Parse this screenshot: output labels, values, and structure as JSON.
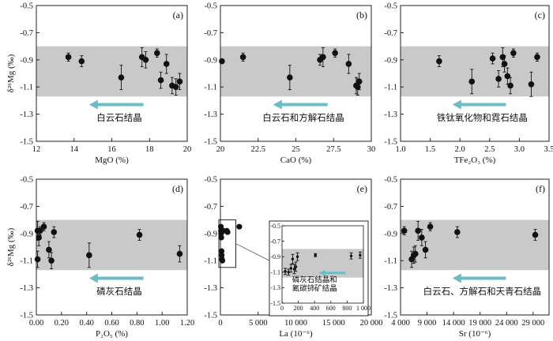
{
  "colors": {
    "band": "#c9c9c9",
    "arrow": "#6bbcc4",
    "point": "#111111",
    "frame": "#222222"
  },
  "ylabel": "δ²⁶Mg (‰)",
  "chart_data": [
    {
      "id": "a",
      "type": "scatter",
      "panel_label": "(a)",
      "xlabel": "MgO (%)",
      "xlim": [
        12,
        20
      ],
      "xticks": [
        12,
        14,
        16,
        18,
        20
      ],
      "ylim": [
        -1.5,
        -0.5
      ],
      "yticks": [
        -0.5,
        -0.7,
        -0.9,
        -1.1,
        -1.3,
        -1.5
      ],
      "band": [
        -1.17,
        -0.8
      ],
      "annotation": "白云石结晶",
      "arrow_direction": "left",
      "points": [
        {
          "x": 13.7,
          "y": -0.88,
          "err": 0.03
        },
        {
          "x": 14.4,
          "y": -0.91,
          "err": 0.04
        },
        {
          "x": 16.5,
          "y": -1.03,
          "err": 0.09
        },
        {
          "x": 17.6,
          "y": -0.88,
          "err": 0.07
        },
        {
          "x": 17.8,
          "y": -0.9,
          "err": 0.06
        },
        {
          "x": 18.4,
          "y": -0.85,
          "err": 0.03
        },
        {
          "x": 18.6,
          "y": -1.05,
          "err": 0.06
        },
        {
          "x": 18.9,
          "y": -0.93,
          "err": 0.07
        },
        {
          "x": 19.2,
          "y": -1.09,
          "err": 0.06
        },
        {
          "x": 19.4,
          "y": -1.1,
          "err": 0.06
        },
        {
          "x": 19.6,
          "y": -1.06,
          "err": 0.06
        }
      ]
    },
    {
      "id": "b",
      "type": "scatter",
      "panel_label": "(b)",
      "xlabel": "CaO (%)",
      "xlim": [
        20,
        30
      ],
      "xticks": [
        20,
        22.5,
        25,
        27.5,
        30
      ],
      "xtick_labels": [
        "20",
        "22.5",
        "25",
        "27.5",
        "30"
      ],
      "ylim": [
        -1.5,
        -0.5
      ],
      "yticks": [
        -0.5,
        -0.7,
        -0.9,
        -1.1,
        -1.3,
        -1.5
      ],
      "band": [
        -1.17,
        -0.8
      ],
      "annotation": "白云石和方解石结晶",
      "arrow_direction": "left",
      "points": [
        {
          "x": 20.1,
          "y": -0.91,
          "err": 0
        },
        {
          "x": 21.5,
          "y": -0.88,
          "err": 0.03
        },
        {
          "x": 24.6,
          "y": -1.03,
          "err": 0.09
        },
        {
          "x": 26.6,
          "y": -0.9,
          "err": 0.04
        },
        {
          "x": 26.8,
          "y": -0.88,
          "err": 0.07
        },
        {
          "x": 27.6,
          "y": -0.85,
          "err": 0.03
        },
        {
          "x": 28.5,
          "y": -0.93,
          "err": 0.07
        },
        {
          "x": 29.0,
          "y": -1.09,
          "err": 0.06
        },
        {
          "x": 29.2,
          "y": -1.06,
          "err": 0.06
        },
        {
          "x": 29.1,
          "y": -1.1,
          "err": 0.06
        }
      ]
    },
    {
      "id": "c",
      "type": "scatter",
      "panel_label": "(c)",
      "xlabel": "TFe₂O₃ (%)",
      "xlim": [
        1.0,
        3.5
      ],
      "xticks": [
        1.0,
        1.5,
        2.0,
        2.5,
        3.0,
        3.5
      ],
      "xtick_labels": [
        "1.0",
        "1.5",
        "2.0",
        "2.5",
        "3.0",
        "3.5"
      ],
      "ylim": [
        -1.5,
        -0.5
      ],
      "yticks": [
        -0.5,
        -0.7,
        -0.9,
        -1.1,
        -1.3,
        -1.5
      ],
      "band": [
        -1.17,
        -0.8
      ],
      "annotation": "铁钛氧化物和霓石结晶",
      "arrow_direction": "left",
      "points": [
        {
          "x": 1.65,
          "y": -0.91,
          "err": 0.04
        },
        {
          "x": 2.2,
          "y": -1.06,
          "err": 0.09
        },
        {
          "x": 2.55,
          "y": -0.89,
          "err": 0.04
        },
        {
          "x": 2.65,
          "y": -1.04,
          "err": 0.06
        },
        {
          "x": 2.72,
          "y": -0.88,
          "err": 0.07
        },
        {
          "x": 2.75,
          "y": -0.93,
          "err": 0.06
        },
        {
          "x": 2.8,
          "y": -1.02,
          "err": 0.06
        },
        {
          "x": 2.85,
          "y": -1.09,
          "err": 0.06
        },
        {
          "x": 2.9,
          "y": -0.85,
          "err": 0.03
        },
        {
          "x": 3.2,
          "y": -1.08,
          "err": 0.09
        },
        {
          "x": 3.3,
          "y": -0.88,
          "err": 0.03
        }
      ]
    },
    {
      "id": "d",
      "type": "scatter",
      "panel_label": "(d)",
      "xlabel": "P₂O₅ (%)",
      "xlim": [
        0,
        1.2
      ],
      "xticks": [
        0,
        0.2,
        0.4,
        0.6,
        0.8,
        1.0,
        1.2
      ],
      "xtick_labels": [
        "0.00",
        "0.20",
        "0.40",
        "0.60",
        "0.80",
        "1.00",
        "1.20"
      ],
      "ylim": [
        -1.5,
        -0.5
      ],
      "yticks": [
        -0.5,
        -0.7,
        -0.9,
        -1.1,
        -1.3,
        -1.5
      ],
      "band": [
        -1.17,
        -0.8
      ],
      "annotation": "磷灰石结晶",
      "arrow_direction": "left",
      "points": [
        {
          "x": 0.01,
          "y": -0.88,
          "err": 0.07
        },
        {
          "x": 0.01,
          "y": -1.09,
          "err": 0.06
        },
        {
          "x": 0.02,
          "y": -0.93,
          "err": 0.06
        },
        {
          "x": 0.03,
          "y": -0.88,
          "err": 0.03
        },
        {
          "x": 0.06,
          "y": -0.85,
          "err": 0.03
        },
        {
          "x": 0.1,
          "y": -1.02,
          "err": 0.06
        },
        {
          "x": 0.12,
          "y": -1.1,
          "err": 0.06
        },
        {
          "x": 0.14,
          "y": -0.89,
          "err": 0.04
        },
        {
          "x": 0.42,
          "y": -1.06,
          "err": 0.09
        },
        {
          "x": 0.82,
          "y": -0.91,
          "err": 0.04
        },
        {
          "x": 1.14,
          "y": -1.05,
          "err": 0.06
        }
      ]
    },
    {
      "id": "e",
      "type": "scatter",
      "panel_label": "(e)",
      "xlabel": "La (10⁻⁶)",
      "xlim": [
        0,
        20000
      ],
      "xticks": [
        0,
        5000,
        10000,
        15000,
        20000
      ],
      "xtick_labels": [
        "0",
        "5 000",
        "10 000",
        "15 000",
        "20 000"
      ],
      "ylim": [
        -1.5,
        -0.5
      ],
      "yticks": [
        -0.5,
        -0.7,
        -0.9,
        -1.1,
        -1.3,
        -1.5
      ],
      "band": null,
      "points": [
        {
          "x": 60,
          "y": -0.85,
          "err": 0
        },
        {
          "x": 80,
          "y": -0.88,
          "err": 0
        },
        {
          "x": 100,
          "y": -0.9,
          "err": 0
        },
        {
          "x": 120,
          "y": -0.93,
          "err": 0
        },
        {
          "x": 150,
          "y": -1.03,
          "err": 0
        },
        {
          "x": 170,
          "y": -1.06,
          "err": 0
        },
        {
          "x": 200,
          "y": -1.09,
          "err": 0
        },
        {
          "x": 260,
          "y": -1.1,
          "err": 0
        },
        {
          "x": 400,
          "y": -0.88,
          "err": 0
        },
        {
          "x": 850,
          "y": -0.88,
          "err": 0
        },
        {
          "x": 950,
          "y": -0.89,
          "err": 0
        },
        {
          "x": 2500,
          "y": -0.85,
          "err": 0
        },
        {
          "x": 18300,
          "y": -0.91,
          "err": 0.04
        }
      ],
      "inset": {
        "xlim": [
          0,
          1000
        ],
        "xticks": [
          0,
          200,
          400,
          600,
          800,
          1000
        ],
        "xtick_labels": [
          "0",
          "200",
          "400",
          "600",
          "800",
          "1 000"
        ],
        "ylim": [
          -1.5,
          -0.5
        ],
        "yticks": [
          -0.5,
          -0.7,
          -0.9,
          -1.1,
          -1.3,
          -1.5
        ],
        "band": [
          -1.17,
          -0.8
        ],
        "annotation_line1": "磷灰石结晶和",
        "annotation_line2": "氟碳铈矿结晶",
        "arrow_direction": "left",
        "points": [
          {
            "x": 40,
            "y": -1.09,
            "err": 0.04
          },
          {
            "x": 80,
            "y": -1.1,
            "err": 0.04
          },
          {
            "x": 110,
            "y": -1.05,
            "err": 0.05
          },
          {
            "x": 130,
            "y": -0.93,
            "err": 0.06
          },
          {
            "x": 150,
            "y": -1.06,
            "err": 0.06
          },
          {
            "x": 170,
            "y": -1.03,
            "err": 0.06
          },
          {
            "x": 190,
            "y": -0.9,
            "err": 0.05
          },
          {
            "x": 410,
            "y": -0.88,
            "err": 0.02
          },
          {
            "x": 850,
            "y": -0.89,
            "err": 0.04
          },
          {
            "x": 960,
            "y": -0.88,
            "err": 0.04
          }
        ]
      }
    },
    {
      "id": "f",
      "type": "scatter",
      "panel_label": "(f)",
      "xlabel": "Sr (10⁻⁶)",
      "xlim": [
        4000,
        32000
      ],
      "xticks": [
        4000,
        9000,
        14000,
        19000,
        24000,
        29000
      ],
      "xtick_labels": [
        "4 000",
        "9 000",
        "14 000",
        "19 000",
        "24 000",
        "29 000"
      ],
      "ylim": [
        -1.5,
        -0.5
      ],
      "yticks": [
        -0.5,
        -0.7,
        -0.9,
        -1.1,
        -1.3,
        -1.5
      ],
      "band": [
        -1.17,
        -0.8
      ],
      "annotation": "白云石、方解石和天青石结晶",
      "arrow_direction": "left",
      "points": [
        {
          "x": 4700,
          "y": -0.88,
          "err": 0.03
        },
        {
          "x": 6100,
          "y": -1.09,
          "err": 0.06
        },
        {
          "x": 6500,
          "y": -1.06,
          "err": 0.06
        },
        {
          "x": 6800,
          "y": -1.05,
          "err": 0.06
        },
        {
          "x": 7300,
          "y": -0.88,
          "err": 0.07
        },
        {
          "x": 8000,
          "y": -0.93,
          "err": 0.06
        },
        {
          "x": 8700,
          "y": -1.02,
          "err": 0.06
        },
        {
          "x": 9600,
          "y": -0.85,
          "err": 0.03
        },
        {
          "x": 14700,
          "y": -0.89,
          "err": 0.04
        },
        {
          "x": 29400,
          "y": -0.91,
          "err": 0.04
        }
      ]
    }
  ]
}
